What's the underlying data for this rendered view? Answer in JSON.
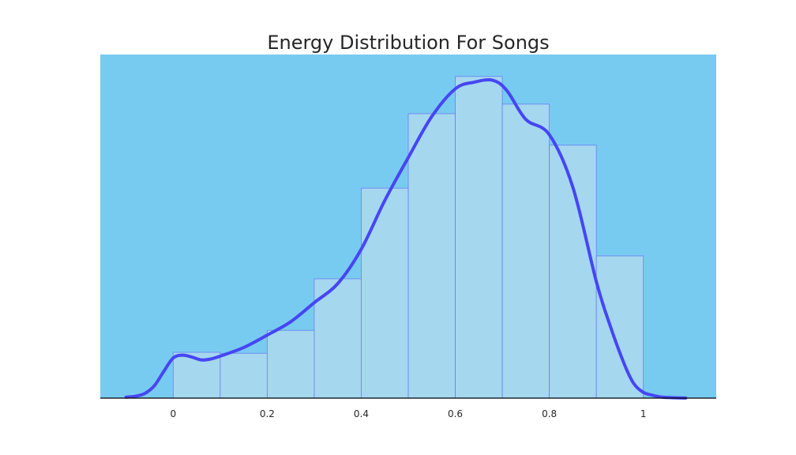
{
  "chart_data": {
    "type": "bar",
    "title": "Energy Distribution For Songs",
    "xlabel": "",
    "ylabel": "",
    "xlim": [
      -0.155,
      1.155
    ],
    "ylim": [
      0,
      3.6
    ],
    "grid": false,
    "x_ticks": [
      0,
      0.2,
      0.4,
      0.6,
      0.8,
      1
    ],
    "x_tick_labels": [
      "0",
      "0.2",
      "0.4",
      "0.6",
      "0.8",
      "1"
    ],
    "histogram": {
      "bin_edges": [
        0,
        0.1,
        0.2,
        0.3,
        0.4,
        0.5,
        0.6,
        0.7,
        0.8,
        0.9,
        1.0
      ],
      "values": [
        0.48,
        0.47,
        0.71,
        1.25,
        2.2,
        2.98,
        3.37,
        3.08,
        2.65,
        1.49
      ]
    },
    "kde": {
      "x": [
        -0.1,
        -0.08,
        -0.06,
        -0.04,
        -0.02,
        0,
        0.02,
        0.04,
        0.06,
        0.08,
        0.1,
        0.15,
        0.2,
        0.25,
        0.3,
        0.35,
        0.4,
        0.45,
        0.5,
        0.55,
        0.6,
        0.64,
        0.68,
        0.71,
        0.75,
        0.8,
        0.85,
        0.9,
        0.93,
        0.96,
        0.98,
        1.0,
        1.02,
        1.04,
        1.06,
        1.08,
        1.09
      ],
      "y": [
        0.01,
        0.02,
        0.05,
        0.13,
        0.28,
        0.42,
        0.45,
        0.43,
        0.4,
        0.41,
        0.44,
        0.53,
        0.66,
        0.8,
        1.0,
        1.2,
        1.56,
        2.07,
        2.52,
        2.95,
        3.24,
        3.31,
        3.33,
        3.22,
        2.92,
        2.76,
        2.21,
        1.22,
        0.75,
        0.35,
        0.15,
        0.06,
        0.03,
        0.01,
        0.005,
        0.002,
        0.001
      ]
    },
    "colors": {
      "plot_background": "#78cbf0",
      "bar_fill": "#a5d7ee",
      "bar_edge": "#6a7ef2",
      "kde_line": "#4646f4",
      "axis_line": "#000000"
    }
  }
}
